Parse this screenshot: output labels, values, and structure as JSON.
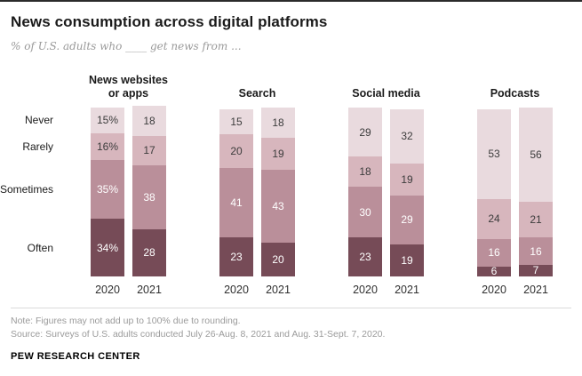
{
  "page": {
    "title": "News consumption across digital platforms",
    "subtitle": "% of U.S. adults who ____ get news from ...",
    "note": "Note: Figures may not add up to 100% due to rounding.",
    "source": "Source: Surveys of U.S. adults conducted July 26-Aug. 8, 2021 and Aug. 31-Sept. 7, 2020.",
    "footer": "PEW RESEARCH CENTER"
  },
  "chart_data": {
    "type": "bar",
    "stacked": true,
    "unit": "%",
    "ylim": [
      0,
      100
    ],
    "grid": false,
    "legend_position": "left-axis-labels",
    "response_categories_top_down": [
      "Never",
      "Rarely",
      "Sometimes",
      "Often"
    ],
    "colors": {
      "Never": "#e9dade",
      "Rarely": "#d7b6bd",
      "Sometimes": "#ba8f9a",
      "Often": "#764b57"
    },
    "label_colors": {
      "Never": "#3c3c3c",
      "Rarely": "#3c3c3c",
      "Sometimes": "#ffffff",
      "Often": "#ffffff"
    },
    "groups": [
      {
        "name": "News websites\nor apps",
        "bars": [
          {
            "year": "2020",
            "segments": [
              {
                "cat": "Never",
                "value": 15,
                "label": "15%"
              },
              {
                "cat": "Rarely",
                "value": 16,
                "label": "16%"
              },
              {
                "cat": "Sometimes",
                "value": 35,
                "label": "35%"
              },
              {
                "cat": "Often",
                "value": 34,
                "label": "34%"
              }
            ]
          },
          {
            "year": "2021",
            "segments": [
              {
                "cat": "Never",
                "value": 18,
                "label": "18"
              },
              {
                "cat": "Rarely",
                "value": 17,
                "label": "17"
              },
              {
                "cat": "Sometimes",
                "value": 38,
                "label": "38"
              },
              {
                "cat": "Often",
                "value": 28,
                "label": "28"
              }
            ]
          }
        ]
      },
      {
        "name": "Search",
        "bars": [
          {
            "year": "2020",
            "segments": [
              {
                "cat": "Never",
                "value": 15,
                "label": "15"
              },
              {
                "cat": "Rarely",
                "value": 20,
                "label": "20"
              },
              {
                "cat": "Sometimes",
                "value": 41,
                "label": "41"
              },
              {
                "cat": "Often",
                "value": 23,
                "label": "23"
              }
            ]
          },
          {
            "year": "2021",
            "segments": [
              {
                "cat": "Never",
                "value": 18,
                "label": "18"
              },
              {
                "cat": "Rarely",
                "value": 19,
                "label": "19"
              },
              {
                "cat": "Sometimes",
                "value": 43,
                "label": "43"
              },
              {
                "cat": "Often",
                "value": 20,
                "label": "20"
              }
            ]
          }
        ]
      },
      {
        "name": "Social media",
        "bars": [
          {
            "year": "2020",
            "segments": [
              {
                "cat": "Never",
                "value": 29,
                "label": "29"
              },
              {
                "cat": "Rarely",
                "value": 18,
                "label": "18"
              },
              {
                "cat": "Sometimes",
                "value": 30,
                "label": "30"
              },
              {
                "cat": "Often",
                "value": 23,
                "label": "23"
              }
            ]
          },
          {
            "year": "2021",
            "segments": [
              {
                "cat": "Never",
                "value": 32,
                "label": "32"
              },
              {
                "cat": "Rarely",
                "value": 19,
                "label": "19"
              },
              {
                "cat": "Sometimes",
                "value": 29,
                "label": "29"
              },
              {
                "cat": "Often",
                "value": 19,
                "label": "19"
              }
            ]
          }
        ]
      },
      {
        "name": "Podcasts",
        "bars": [
          {
            "year": "2020",
            "segments": [
              {
                "cat": "Never",
                "value": 53,
                "label": "53"
              },
              {
                "cat": "Rarely",
                "value": 24,
                "label": "24"
              },
              {
                "cat": "Sometimes",
                "value": 16,
                "label": "16"
              },
              {
                "cat": "Often",
                "value": 6,
                "label": "6"
              }
            ]
          },
          {
            "year": "2021",
            "segments": [
              {
                "cat": "Never",
                "value": 56,
                "label": "56"
              },
              {
                "cat": "Rarely",
                "value": 21,
                "label": "21"
              },
              {
                "cat": "Sometimes",
                "value": 16,
                "label": "16"
              },
              {
                "cat": "Often",
                "value": 7,
                "label": "7"
              }
            ]
          }
        ]
      }
    ]
  }
}
